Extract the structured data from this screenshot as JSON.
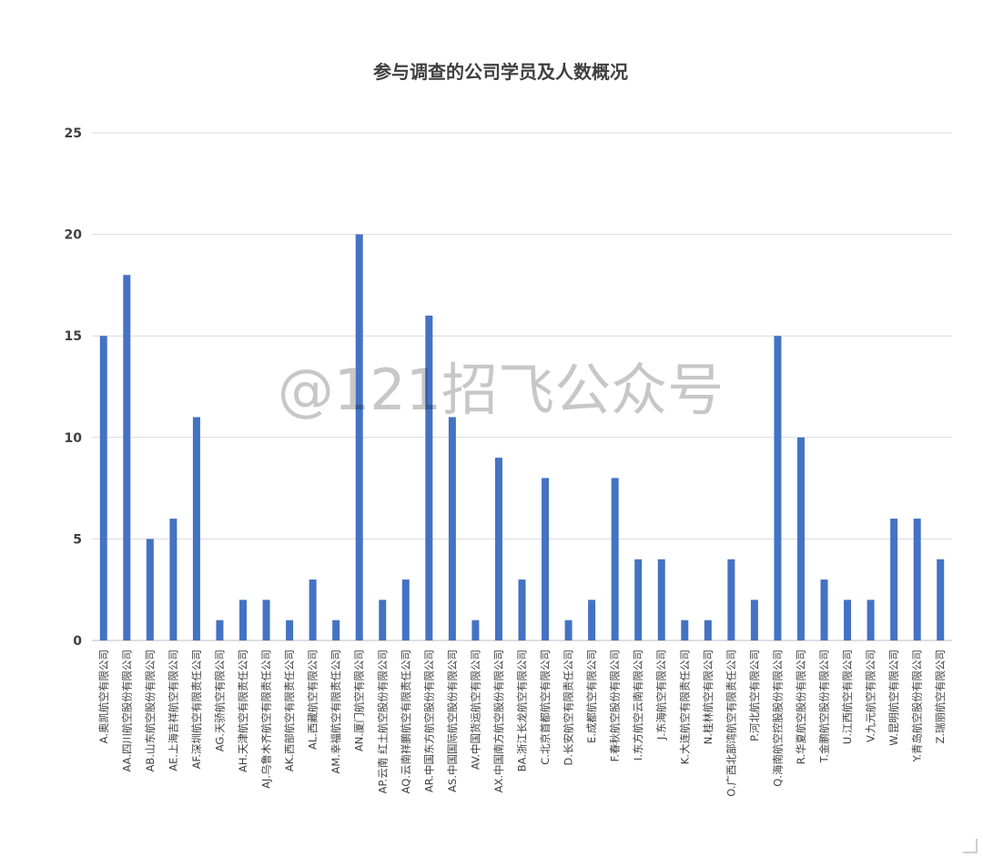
{
  "chart_data": {
    "type": "bar",
    "title": "参与调查的公司学员及人数概况",
    "xlabel": "",
    "ylabel": "",
    "ylim": [
      0,
      25
    ],
    "yticks": [
      0,
      5,
      10,
      15,
      20,
      25
    ],
    "grid": true,
    "legend": "none",
    "bar_color": "#4472c4",
    "categories": [
      "A.奥凯航空有限公司",
      "AA.四川航空股份有限公司",
      "AB.山东航空股份有限公司",
      "AE.上海吉祥航空有限公司",
      "AF.深圳航空有限责任公司",
      "AG.天骄航空有限公司",
      "AH.天津航空有限责任公司",
      "AJ.乌鲁木齐航空有限责任公司",
      "AK.西部航空有限责任公司",
      "AL.西藏航空有限公司",
      "AM.幸福航空有限责任公司",
      "AN.厦门航空有限公司",
      "AP.云南 红土航空股份有限公司",
      "AQ.云南祥鹏航空有限责任公司",
      "AR.中国东方航空股份有限公司",
      "AS.中国国际航空股份有限公司",
      "AV.中国货运航空有限公司",
      "AX.中国南方航空股份有限公司",
      "BA.浙江长龙航空有限公司",
      "C.北京首都航空有限公司",
      "D.长安航空有限责任公司",
      "E.成都航空有限公司",
      "F.春秋航空股份有限公司",
      "I.东方航空云南有限公司",
      "J.东海航空有限公司",
      "K.大连航空有限责任公司",
      "N.桂林航空有限公司",
      "O.广西北部湾航空有限责任公司",
      "P.河北航空有限公司",
      "Q.海南航空控股股份有限公司",
      "R.华夏航空股份有限公司",
      "T.金鹏航空股份有限公司",
      "U.江西航空有限公司",
      "V.九元航空有限公司",
      "W.昆明航空有限公司",
      "Y.青岛航空股份有限公司",
      "Z.瑞丽航空有限公司"
    ],
    "values": [
      15,
      18,
      5,
      6,
      11,
      1,
      2,
      2,
      1,
      3,
      1,
      20,
      2,
      3,
      16,
      11,
      1,
      9,
      3,
      8,
      1,
      2,
      8,
      4,
      4,
      1,
      1,
      4,
      2,
      15,
      10,
      3,
      2,
      2,
      6,
      6,
      4
    ]
  },
  "watermark": "@121招飞公众号"
}
